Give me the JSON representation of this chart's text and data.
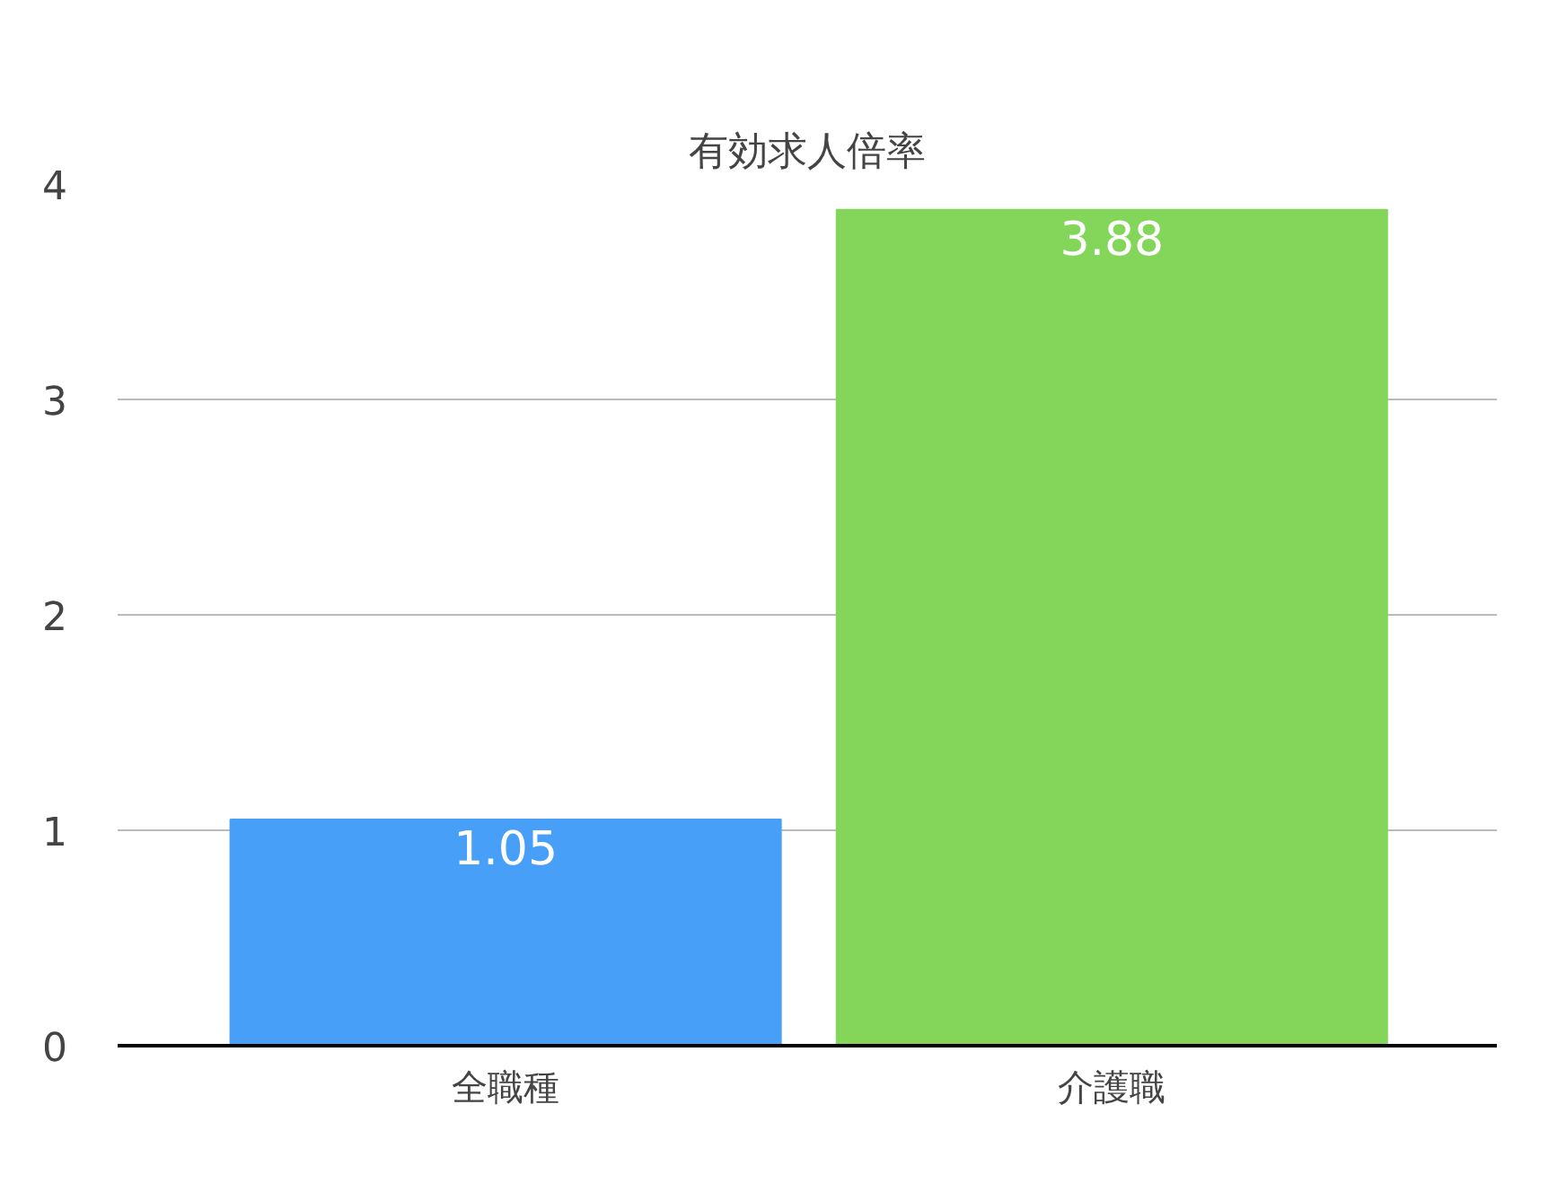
{
  "chart_data": {
    "type": "bar",
    "title": "有効求人倍率",
    "categories": [
      "全職種",
      "介護職"
    ],
    "values": [
      1.05,
      3.88
    ],
    "colors": [
      "#479ff8",
      "#83d65a"
    ],
    "ylim": [
      0,
      4
    ],
    "yticks": [
      0,
      1,
      2,
      3,
      4
    ],
    "grid": "y",
    "data_labels": true
  }
}
